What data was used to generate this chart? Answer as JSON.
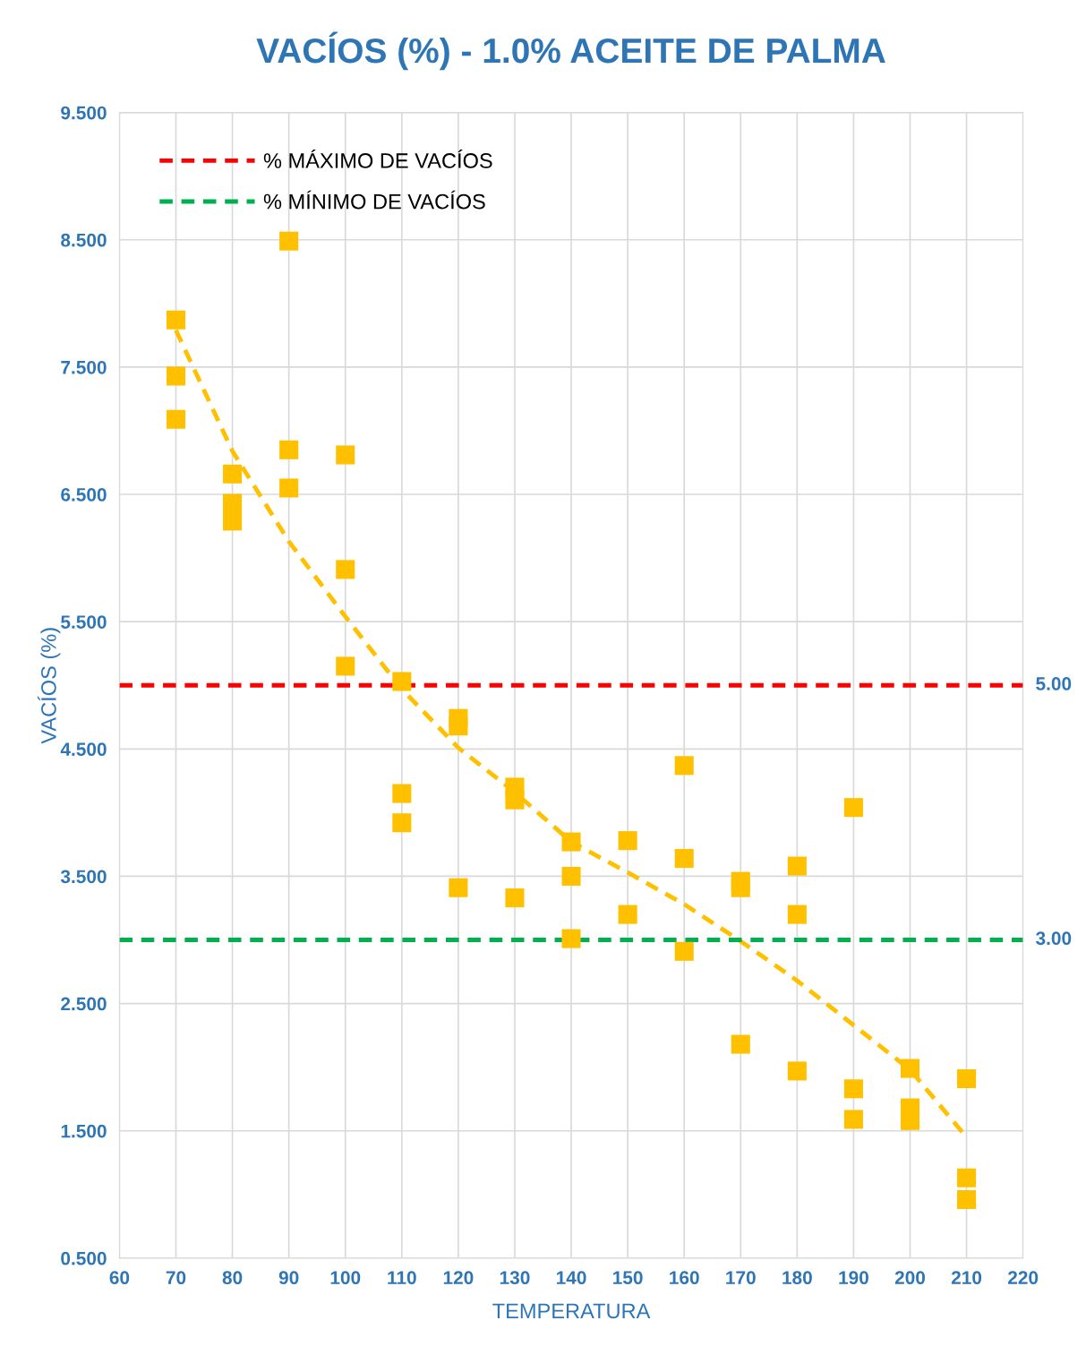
{
  "chart_data": {
    "type": "scatter",
    "title": "VACÍOS (%) - 1.0% ACEITE DE PALMA",
    "xlabel": "TEMPERATURA",
    "ylabel": "VACÍOS (%)",
    "xlim": [
      60,
      220
    ],
    "xticks": [
      60,
      70,
      80,
      90,
      100,
      110,
      120,
      130,
      140,
      150,
      160,
      170,
      180,
      190,
      200,
      210,
      220
    ],
    "ylim": [
      0.5,
      9.5
    ],
    "yticks": [
      {
        "value": 0.5,
        "label": "0.500"
      },
      {
        "value": 1.5,
        "label": "1.500"
      },
      {
        "value": 2.5,
        "label": "2.500"
      },
      {
        "value": 3.5,
        "label": "3.500"
      },
      {
        "value": 4.5,
        "label": "4.500"
      },
      {
        "value": 5.5,
        "label": "5.500"
      },
      {
        "value": 6.5,
        "label": "6.500"
      },
      {
        "value": 7.5,
        "label": "7.500"
      },
      {
        "value": 8.5,
        "label": "8.500"
      },
      {
        "value": 9.5,
        "label": "9.500"
      }
    ],
    "grid": true,
    "legend": "top left",
    "marker": "square",
    "series": [
      {
        "color": "#ffc000",
        "x": [
          70,
          70,
          70,
          80,
          80,
          80,
          90,
          90,
          90,
          100,
          100,
          100,
          110,
          110,
          110,
          120,
          120,
          120,
          130,
          130,
          130,
          140,
          140,
          140,
          150,
          150,
          160,
          160,
          160,
          170,
          170,
          170,
          180,
          180,
          180,
          190,
          190,
          190,
          200,
          200,
          200,
          210,
          210,
          210
        ],
        "values": [
          7.87,
          7.43,
          7.09,
          6.66,
          6.43,
          6.29,
          8.49,
          6.85,
          6.55,
          6.81,
          5.91,
          5.15,
          5.03,
          4.15,
          3.92,
          4.74,
          4.68,
          3.41,
          4.2,
          4.1,
          3.33,
          3.77,
          3.5,
          3.01,
          3.78,
          3.2,
          4.37,
          3.64,
          2.91,
          3.46,
          3.41,
          2.18,
          3.58,
          3.2,
          1.97,
          4.04,
          1.83,
          1.59,
          1.99,
          1.68,
          1.58,
          1.91,
          1.13,
          0.96
        ]
      },
      {
        "type": "line",
        "color": "#ffc000",
        "line_style": "dashed",
        "marker": "none",
        "x": [
          70,
          80,
          90,
          100,
          110,
          120,
          130,
          140,
          150,
          160,
          170,
          180,
          190,
          200,
          210
        ],
        "values": [
          7.79,
          6.84,
          6.13,
          5.54,
          4.97,
          4.51,
          4.16,
          3.77,
          3.53,
          3.28,
          2.99,
          2.68,
          2.33,
          1.98,
          1.45
        ]
      },
      {
        "type": "line",
        "name": "% MÁXIMO DE VACÍOS",
        "color": "#ff0000",
        "line_style": "dashed",
        "marker": "none",
        "x": [
          60,
          220
        ],
        "values": [
          5,
          5
        ],
        "value_labels": [
          null,
          "5.00"
        ]
      },
      {
        "type": "line",
        "name": "% MÍNIMO DE VACÍOS",
        "color": "#00b050",
        "line_style": "dashed",
        "marker": "none",
        "x": [
          60,
          220
        ],
        "values": [
          3,
          3
        ],
        "value_labels": [
          null,
          "3.00"
        ]
      }
    ]
  }
}
